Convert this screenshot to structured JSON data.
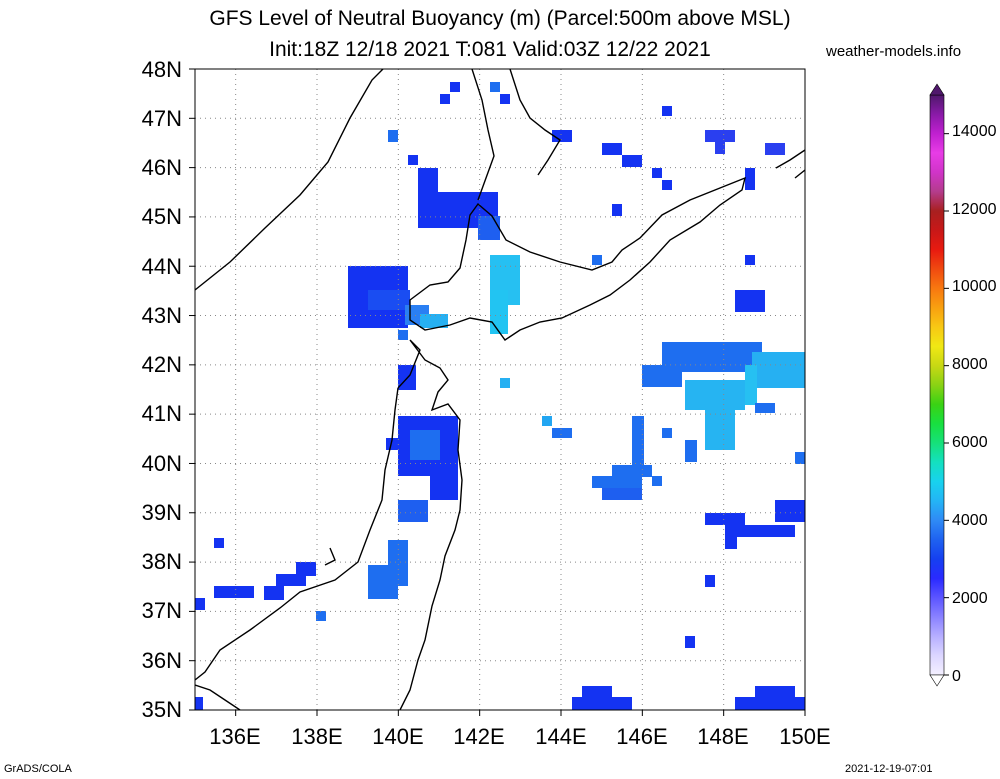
{
  "header": {
    "title_line1": "GFS Level of Neutral Buoyancy (m) (Parcel:500m above MSL)",
    "title_line2": "Init:18Z 12/18 2021 T:081 Valid:03Z 12/22 2021",
    "site": "weather-models.info"
  },
  "footer": {
    "left": "GrADS/COLA",
    "right": "2021-12-19-07:01"
  },
  "axes": {
    "lat_labels": [
      "48N",
      "47N",
      "46N",
      "45N",
      "44N",
      "43N",
      "42N",
      "41N",
      "40N",
      "39N",
      "38N",
      "37N",
      "36N",
      "35N"
    ],
    "lon_labels": [
      "136E",
      "138E",
      "140E",
      "142E",
      "144E",
      "146E",
      "148E",
      "150E"
    ],
    "lat_range": [
      35,
      48
    ],
    "lon_range": [
      135,
      150
    ]
  },
  "colorbar": {
    "labels": [
      "14000",
      "12000",
      "10000",
      "8000",
      "6000",
      "4000",
      "2000",
      "0"
    ],
    "range": [
      0,
      15000
    ],
    "colors": [
      "#f4f0ff",
      "#dcd6ff",
      "#b7afff",
      "#8a82ff",
      "#5c55ff",
      "#2a2aff",
      "#1540f0",
      "#1f62f0",
      "#2f8af5",
      "#24b4f5",
      "#18d2ee",
      "#14e0c0",
      "#16e07a",
      "#18e040",
      "#3ad214",
      "#8ad214",
      "#c8d814",
      "#f0e814",
      "#f8c814",
      "#f8a010",
      "#f87810",
      "#f04a10",
      "#e81a10",
      "#c81818",
      "#a82020",
      "#b43c8c",
      "#d034c8",
      "#e83ce6",
      "#c020d0",
      "#8a1aa8",
      "#50186c"
    ]
  },
  "colors": {
    "deep_blue": "#1433f2",
    "mid_blue": "#1e6ef0",
    "light_blue": "#2898f5",
    "cyan": "#22c4f2"
  }
}
